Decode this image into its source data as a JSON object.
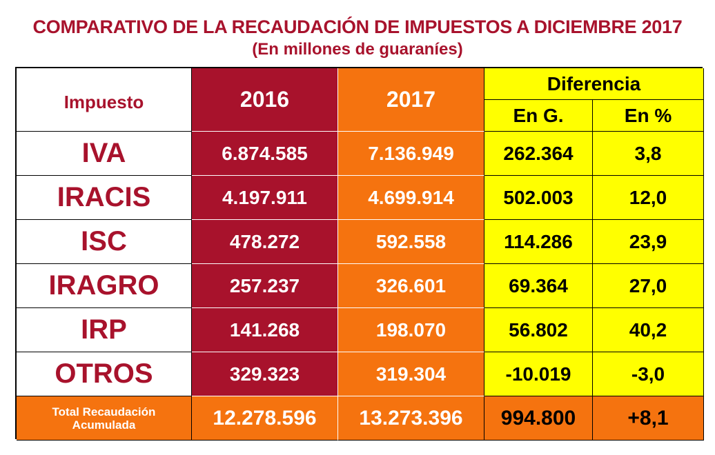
{
  "title": "COMPARATIVO DE LA RECAUDACIÓN DE IMPUESTOS A DICIEMBRE 2017",
  "subtitle": "(En millones de guaraníes)",
  "chart_data": {
    "type": "table",
    "headers": {
      "impuesto": "Impuesto",
      "y2016": "2016",
      "y2017": "2017",
      "diferencia": "Diferencia",
      "en_g": "En G.",
      "en_pct": "En %"
    },
    "rows": [
      {
        "impuesto": "IVA",
        "y2016": "6.874.585",
        "y2017": "7.136.949",
        "dif_g": "262.364",
        "dif_pct": "3,8"
      },
      {
        "impuesto": "IRACIS",
        "y2016": "4.197.911",
        "y2017": "4.699.914",
        "dif_g": "502.003",
        "dif_pct": "12,0"
      },
      {
        "impuesto": "ISC",
        "y2016": "478.272",
        "y2017": "592.558",
        "dif_g": "114.286",
        "dif_pct": "23,9"
      },
      {
        "impuesto": "IRAGRO",
        "y2016": "257.237",
        "y2017": "326.601",
        "dif_g": "69.364",
        "dif_pct": "27,0"
      },
      {
        "impuesto": "IRP",
        "y2016": "141.268",
        "y2017": "198.070",
        "dif_g": "56.802",
        "dif_pct": "40,2"
      },
      {
        "impuesto": "OTROS",
        "y2016": "329.323",
        "y2017": "319.304",
        "dif_g": "-10.019",
        "dif_pct": "-3,0"
      }
    ],
    "total": {
      "label_line1": "Total Recaudación",
      "label_line2": "Acumulada",
      "y2016": "12.278.596",
      "y2017": "13.273.396",
      "dif_g": "994.800",
      "dif_pct": "+8,1"
    }
  },
  "colors": {
    "maroon": "#a8122c",
    "orange": "#f5730f",
    "yellow": "#ffff00"
  }
}
